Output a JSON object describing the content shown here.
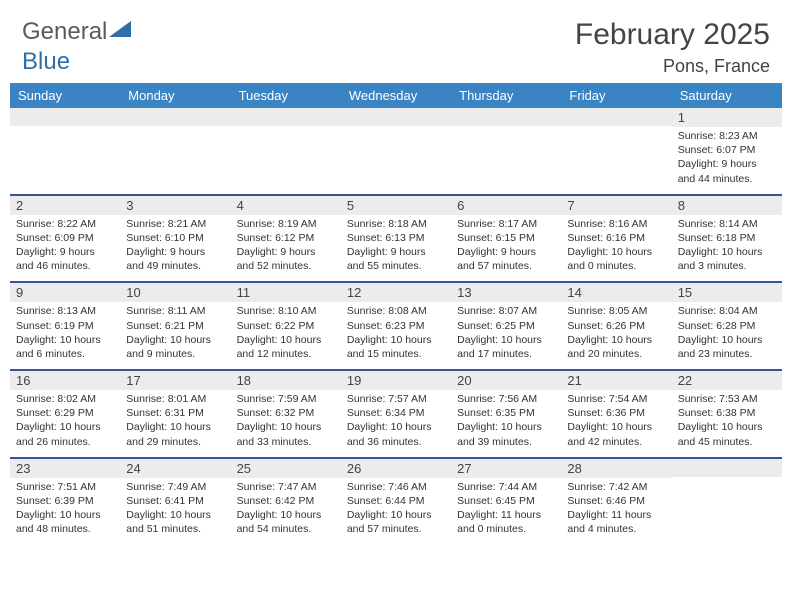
{
  "logo": {
    "text1": "General",
    "text2": "Blue"
  },
  "header": {
    "month": "February 2025",
    "location": "Pons, France"
  },
  "colors": {
    "header_bar": "#3b84c4",
    "row_divider": "#34589a",
    "daynum_bg": "#ececec",
    "logo_blue": "#2f6fa8",
    "text": "#333333"
  },
  "weekdays": [
    "Sunday",
    "Monday",
    "Tuesday",
    "Wednesday",
    "Thursday",
    "Friday",
    "Saturday"
  ],
  "weeks": [
    [
      null,
      null,
      null,
      null,
      null,
      null,
      {
        "n": "1",
        "sr": "Sunrise: 8:23 AM",
        "ss": "Sunset: 6:07 PM",
        "d1": "Daylight: 9 hours",
        "d2": "and 44 minutes."
      }
    ],
    [
      {
        "n": "2",
        "sr": "Sunrise: 8:22 AM",
        "ss": "Sunset: 6:09 PM",
        "d1": "Daylight: 9 hours",
        "d2": "and 46 minutes."
      },
      {
        "n": "3",
        "sr": "Sunrise: 8:21 AM",
        "ss": "Sunset: 6:10 PM",
        "d1": "Daylight: 9 hours",
        "d2": "and 49 minutes."
      },
      {
        "n": "4",
        "sr": "Sunrise: 8:19 AM",
        "ss": "Sunset: 6:12 PM",
        "d1": "Daylight: 9 hours",
        "d2": "and 52 minutes."
      },
      {
        "n": "5",
        "sr": "Sunrise: 8:18 AM",
        "ss": "Sunset: 6:13 PM",
        "d1": "Daylight: 9 hours",
        "d2": "and 55 minutes."
      },
      {
        "n": "6",
        "sr": "Sunrise: 8:17 AM",
        "ss": "Sunset: 6:15 PM",
        "d1": "Daylight: 9 hours",
        "d2": "and 57 minutes."
      },
      {
        "n": "7",
        "sr": "Sunrise: 8:16 AM",
        "ss": "Sunset: 6:16 PM",
        "d1": "Daylight: 10 hours",
        "d2": "and 0 minutes."
      },
      {
        "n": "8",
        "sr": "Sunrise: 8:14 AM",
        "ss": "Sunset: 6:18 PM",
        "d1": "Daylight: 10 hours",
        "d2": "and 3 minutes."
      }
    ],
    [
      {
        "n": "9",
        "sr": "Sunrise: 8:13 AM",
        "ss": "Sunset: 6:19 PM",
        "d1": "Daylight: 10 hours",
        "d2": "and 6 minutes."
      },
      {
        "n": "10",
        "sr": "Sunrise: 8:11 AM",
        "ss": "Sunset: 6:21 PM",
        "d1": "Daylight: 10 hours",
        "d2": "and 9 minutes."
      },
      {
        "n": "11",
        "sr": "Sunrise: 8:10 AM",
        "ss": "Sunset: 6:22 PM",
        "d1": "Daylight: 10 hours",
        "d2": "and 12 minutes."
      },
      {
        "n": "12",
        "sr": "Sunrise: 8:08 AM",
        "ss": "Sunset: 6:23 PM",
        "d1": "Daylight: 10 hours",
        "d2": "and 15 minutes."
      },
      {
        "n": "13",
        "sr": "Sunrise: 8:07 AM",
        "ss": "Sunset: 6:25 PM",
        "d1": "Daylight: 10 hours",
        "d2": "and 17 minutes."
      },
      {
        "n": "14",
        "sr": "Sunrise: 8:05 AM",
        "ss": "Sunset: 6:26 PM",
        "d1": "Daylight: 10 hours",
        "d2": "and 20 minutes."
      },
      {
        "n": "15",
        "sr": "Sunrise: 8:04 AM",
        "ss": "Sunset: 6:28 PM",
        "d1": "Daylight: 10 hours",
        "d2": "and 23 minutes."
      }
    ],
    [
      {
        "n": "16",
        "sr": "Sunrise: 8:02 AM",
        "ss": "Sunset: 6:29 PM",
        "d1": "Daylight: 10 hours",
        "d2": "and 26 minutes."
      },
      {
        "n": "17",
        "sr": "Sunrise: 8:01 AM",
        "ss": "Sunset: 6:31 PM",
        "d1": "Daylight: 10 hours",
        "d2": "and 29 minutes."
      },
      {
        "n": "18",
        "sr": "Sunrise: 7:59 AM",
        "ss": "Sunset: 6:32 PM",
        "d1": "Daylight: 10 hours",
        "d2": "and 33 minutes."
      },
      {
        "n": "19",
        "sr": "Sunrise: 7:57 AM",
        "ss": "Sunset: 6:34 PM",
        "d1": "Daylight: 10 hours",
        "d2": "and 36 minutes."
      },
      {
        "n": "20",
        "sr": "Sunrise: 7:56 AM",
        "ss": "Sunset: 6:35 PM",
        "d1": "Daylight: 10 hours",
        "d2": "and 39 minutes."
      },
      {
        "n": "21",
        "sr": "Sunrise: 7:54 AM",
        "ss": "Sunset: 6:36 PM",
        "d1": "Daylight: 10 hours",
        "d2": "and 42 minutes."
      },
      {
        "n": "22",
        "sr": "Sunrise: 7:53 AM",
        "ss": "Sunset: 6:38 PM",
        "d1": "Daylight: 10 hours",
        "d2": "and 45 minutes."
      }
    ],
    [
      {
        "n": "23",
        "sr": "Sunrise: 7:51 AM",
        "ss": "Sunset: 6:39 PM",
        "d1": "Daylight: 10 hours",
        "d2": "and 48 minutes."
      },
      {
        "n": "24",
        "sr": "Sunrise: 7:49 AM",
        "ss": "Sunset: 6:41 PM",
        "d1": "Daylight: 10 hours",
        "d2": "and 51 minutes."
      },
      {
        "n": "25",
        "sr": "Sunrise: 7:47 AM",
        "ss": "Sunset: 6:42 PM",
        "d1": "Daylight: 10 hours",
        "d2": "and 54 minutes."
      },
      {
        "n": "26",
        "sr": "Sunrise: 7:46 AM",
        "ss": "Sunset: 6:44 PM",
        "d1": "Daylight: 10 hours",
        "d2": "and 57 minutes."
      },
      {
        "n": "27",
        "sr": "Sunrise: 7:44 AM",
        "ss": "Sunset: 6:45 PM",
        "d1": "Daylight: 11 hours",
        "d2": "and 0 minutes."
      },
      {
        "n": "28",
        "sr": "Sunrise: 7:42 AM",
        "ss": "Sunset: 6:46 PM",
        "d1": "Daylight: 11 hours",
        "d2": "and 4 minutes."
      },
      null
    ]
  ]
}
